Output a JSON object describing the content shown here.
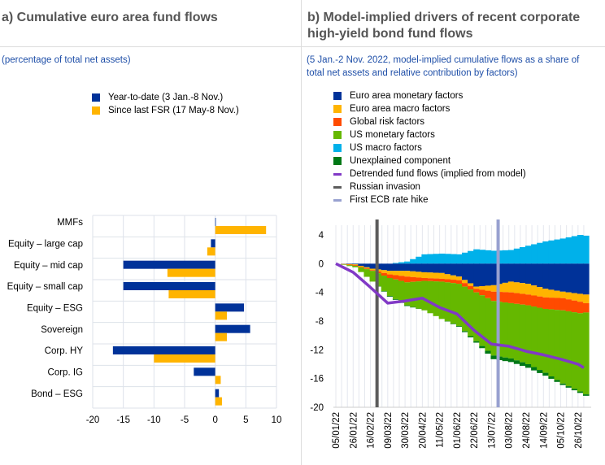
{
  "left": {
    "title": "a) Cumulative euro area fund flows",
    "subtitle": "(percentage of total net assets)",
    "legend": [
      {
        "label": "Year-to-date (3 Jan.-8 Nov.)",
        "color": "#003299"
      },
      {
        "label": "Since last FSR (17 May-8 Nov.)",
        "color": "#ffb400"
      }
    ]
  },
  "right": {
    "title_line1": "b) Model-implied drivers of recent corporate",
    "title_line2": "high-yield bond fund flows",
    "subtitle_line1": "(5 Jan.-2 Nov. 2022, model-implied cumulative flows as a share of",
    "subtitle_line2": "total net assets and relative contribution by factors)",
    "legend": [
      {
        "label": "Euro area monetary factors",
        "color": "#003299",
        "kind": "box"
      },
      {
        "label": "Euro area macro factors",
        "color": "#ffb400",
        "kind": "box"
      },
      {
        "label": "Global risk factors",
        "color": "#ff4b00",
        "kind": "box"
      },
      {
        "label": "US monetary factors",
        "color": "#65b800",
        "kind": "box"
      },
      {
        "label": "US macro factors",
        "color": "#00b1ea",
        "kind": "box"
      },
      {
        "label": "Unexplained component",
        "color": "#007816",
        "kind": "box"
      },
      {
        "label": "Detrended fund flows (implied from model)",
        "color": "#8139c6",
        "kind": "line"
      },
      {
        "label": "Russian invasion",
        "color": "#5c5c5c",
        "kind": "line"
      },
      {
        "label": "First ECB rate hike",
        "color": "#98a1d0",
        "kind": "line"
      }
    ]
  },
  "chart_data": [
    {
      "type": "bar",
      "orientation": "horizontal",
      "title": "a) Cumulative euro area fund flows",
      "categories": [
        "MMFs",
        "Equity – large cap",
        "Equity – mid cap",
        "Equity – small cap",
        "Equity – ESG",
        "Sovereign",
        "Corp. HY",
        "Corp. IG",
        "Bond – ESG"
      ],
      "series": [
        {
          "name": "Year-to-date (3 Jan.-8 Nov.)",
          "values": [
            0.1,
            -0.7,
            -15,
            -15,
            4.7,
            5.7,
            -16.7,
            -3.5,
            0.6
          ]
        },
        {
          "name": "Since last FSR (17 May-8 Nov.)",
          "values": [
            8.3,
            -1.3,
            -7.8,
            -7.6,
            1.9,
            1.9,
            -10,
            0.9,
            1.1
          ]
        }
      ],
      "xlim": [
        -20,
        10
      ],
      "xticks": [
        "-20",
        "-15",
        "-10",
        "-5",
        "0",
        "5",
        "10"
      ],
      "grid": true
    },
    {
      "type": "area",
      "stacked": true,
      "title": "b) Model-implied drivers of recent corporate high-yield bond fund flows",
      "x": [
        "05/01/22",
        "26/01/22",
        "16/02/22",
        "09/03/22",
        "30/03/22",
        "20/04/22",
        "11/05/22",
        "01/06/22",
        "22/06/22",
        "13/07/22",
        "03/08/22",
        "24/08/22",
        "14/09/22",
        "05/10/22",
        "26/10/22",
        "02/11/22"
      ],
      "x_days": [
        0,
        21,
        42,
        63,
        84,
        105,
        126,
        147,
        168,
        189,
        210,
        231,
        252,
        273,
        294,
        301
      ],
      "xticks": [
        "05/01/22",
        "26/01/22",
        "16/02/22",
        "09/03/22",
        "30/03/22",
        "20/04/22",
        "11/05/22",
        "01/06/22",
        "22/06/22",
        "13/07/22",
        "03/08/22",
        "24/08/22",
        "14/09/22",
        "05/10/22",
        "26/10/22"
      ],
      "series": [
        {
          "name": "US macro factors",
          "values": [
            0,
            0,
            0,
            0,
            0.3,
            1.3,
            1.4,
            1.3,
            2,
            1.8,
            1.9,
            2.5,
            3.1,
            3.5,
            4,
            3.9
          ]
        },
        {
          "name": "Euro area monetary factors",
          "values": [
            0,
            -0.1,
            -0.7,
            -1.0,
            -1.0,
            -1.2,
            -1.3,
            -1.8,
            -3.2,
            -3.0,
            -2.5,
            -2.8,
            -3.5,
            -3.9,
            -4.2,
            -4.3
          ]
        },
        {
          "name": "Euro area macro factors",
          "values": [
            0,
            -0.1,
            -0.2,
            -0.5,
            -0.8,
            -0.8,
            -0.8,
            -0.5,
            -0.3,
            -0.9,
            -1.5,
            -1.5,
            -1.2,
            -0.9,
            -1.1,
            -1.2
          ]
        },
        {
          "name": "Global risk factors",
          "values": [
            0,
            -0.1,
            -0.1,
            -0.5,
            -0.8,
            -0.4,
            -0.4,
            -0.5,
            -0.5,
            -1.3,
            -1.5,
            -1.5,
            -1.6,
            -1.7,
            -1.6,
            -1.3
          ]
        },
        {
          "name": "US monetary factors",
          "values": [
            0,
            -0.2,
            -1.5,
            -2.5,
            -3.2,
            -4.1,
            -5.2,
            -5.9,
            -6.8,
            -7.6,
            -7.7,
            -8.2,
            -8.9,
            -10.2,
            -10.9,
            -11.4
          ]
        },
        {
          "name": "Unexplained component",
          "values": [
            0,
            0,
            0,
            -0.1,
            -0.1,
            0,
            0,
            -0.1,
            -0.2,
            -0.5,
            -0.5,
            -0.5,
            -0.4,
            -0.2,
            -0.2,
            -0.2
          ]
        }
      ],
      "line": {
        "name": "Detrended fund flows (implied from model)",
        "values": [
          0,
          -1.2,
          -3.3,
          -5.5,
          -5.2,
          -4.8,
          -6.1,
          -7.0,
          -9.3,
          -11.2,
          -11.5,
          -12.2,
          -12.7,
          -13.3,
          -14.0,
          -14.5
        ]
      },
      "events": [
        {
          "name": "Russian invasion",
          "day": 50
        },
        {
          "name": "First ECB rate hike",
          "day": 197
        }
      ],
      "ylim": [
        -20,
        6
      ],
      "yticks": [
        "4",
        "0",
        "-4",
        "-8",
        "-12",
        "-16",
        "-20"
      ],
      "grid": true
    }
  ]
}
